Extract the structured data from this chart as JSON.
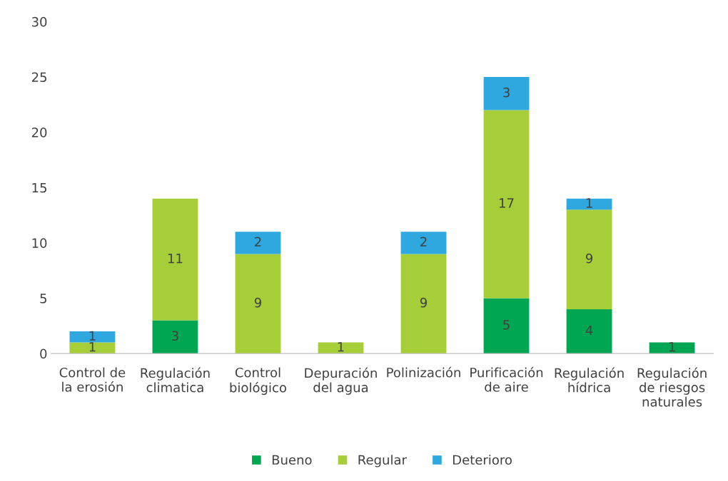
{
  "chart_data": {
    "type": "bar",
    "stacked": true,
    "data_labels": true,
    "legend": "bottom",
    "grid": false,
    "categories": [
      "Control de\nla erosión",
      "Regulación\nclimatica",
      "Control\nbiológico",
      "Depuración\ndel agua",
      "Polinización",
      "Purificación\nde aire",
      "Regulación\nhídrica",
      "Regulación\nde riesgos\nnaturales"
    ],
    "ylim": [
      0,
      30
    ],
    "yticks": [
      0,
      5,
      10,
      15,
      20,
      25,
      30
    ],
    "series": [
      {
        "name": "Bueno",
        "color": "#00a651",
        "values": [
          null,
          3,
          null,
          null,
          null,
          5,
          4,
          1
        ]
      },
      {
        "name": "Regular",
        "color": "#a6ce39",
        "values": [
          1,
          11,
          9,
          1,
          9,
          17,
          9,
          null
        ]
      },
      {
        "name": "Deterioro",
        "color": "#2ea8df",
        "values": [
          1,
          null,
          2,
          null,
          2,
          3,
          1,
          null
        ]
      }
    ]
  }
}
